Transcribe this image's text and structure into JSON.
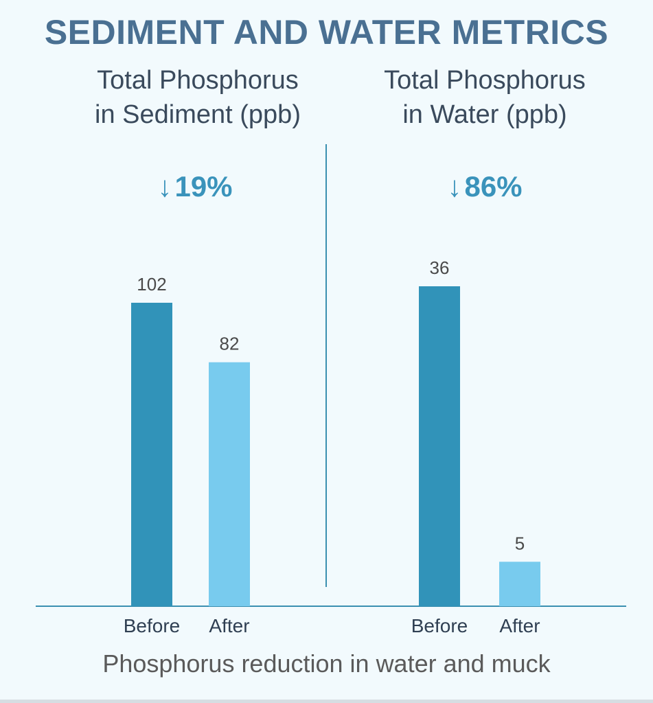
{
  "title": "SEDIMENT AND WATER METRICS",
  "footer": "Phosphorus reduction in water and muck",
  "colors": {
    "before": "#3193b9",
    "after": "#78cbee",
    "axis": "#3a8fb0",
    "title": "#4a7092"
  },
  "panels": [
    {
      "title_line1": "Total Phosphorus",
      "title_line2": "in Sediment (ppb)",
      "change_arrow": "↓",
      "change_value": "19%"
    },
    {
      "title_line1": "Total Phosphorus",
      "title_line2": "in Water (ppb)",
      "change_arrow": "↓",
      "change_value": "86%"
    }
  ],
  "chart_data": [
    {
      "type": "bar",
      "title": "Total Phosphorus in Sediment (ppb)",
      "categories": [
        "Before",
        "After"
      ],
      "values": [
        102,
        82
      ],
      "data_labels": [
        "102",
        "82"
      ],
      "annotation": "↓ 19%"
    },
    {
      "type": "bar",
      "title": "Total Phosphorus in Water (ppb)",
      "categories": [
        "Before",
        "After"
      ],
      "values": [
        36,
        5
      ],
      "data_labels": [
        "36",
        "5"
      ],
      "annotation": "↓ 86%"
    }
  ]
}
